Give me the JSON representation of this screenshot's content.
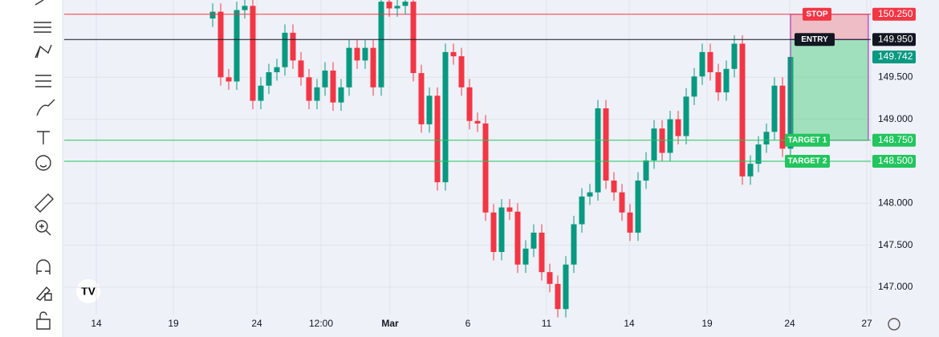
{
  "chart_data": {
    "type": "candlestick",
    "x": [
      0,
      1,
      2,
      3,
      4,
      5,
      6,
      7,
      8,
      9,
      10,
      11,
      12,
      13,
      14,
      15,
      16,
      17,
      18,
      19,
      20,
      21,
      22,
      23,
      24,
      25,
      26,
      27,
      28,
      29,
      30,
      31,
      32,
      33,
      34,
      35,
      36,
      37,
      38,
      39,
      40,
      41,
      42,
      43,
      44,
      45,
      46,
      47,
      48,
      49,
      50,
      51,
      52,
      53,
      54,
      55,
      56,
      57,
      58,
      59,
      60,
      61,
      62,
      63,
      64,
      65,
      66,
      67,
      68,
      69,
      70,
      71,
      72
    ],
    "series": [
      {
        "open": [
          150.2,
          150.28,
          149.5,
          149.45,
          150.3,
          150.35,
          149.22,
          149.4,
          149.56,
          149.62,
          150.03,
          149.7,
          149.5,
          149.22,
          149.38,
          149.58,
          149.2,
          149.38,
          149.85,
          149.7,
          149.85,
          149.38,
          150.4,
          150.32,
          150.35,
          150.4,
          149.55,
          148.94,
          149.28,
          148.25,
          149.8,
          149.75,
          149.38,
          148.98,
          148.95,
          147.89,
          147.42,
          147.95,
          147.9,
          147.27,
          147.46,
          147.65,
          147.18,
          147.04,
          146.74,
          147.27,
          147.75,
          148.08,
          148.13,
          149.13,
          148.27,
          148.13,
          147.89,
          147.65,
          148.27,
          148.51,
          148.89,
          148.6,
          149.0,
          148.8,
          149.27,
          149.51,
          149.8,
          149.56,
          149.32,
          149.6,
          149.9,
          148.32,
          148.47,
          148.7,
          148.85,
          149.4,
          148.65
        ],
        "high": [
          150.38,
          150.38,
          149.6,
          150.4,
          150.45,
          150.45,
          149.5,
          149.66,
          149.72,
          150.13,
          150.13,
          149.8,
          149.6,
          149.48,
          149.68,
          149.68,
          149.48,
          149.95,
          149.95,
          149.95,
          149.95,
          150.5,
          150.5,
          150.45,
          150.5,
          150.5,
          149.65,
          149.38,
          149.38,
          149.9,
          149.9,
          149.85,
          149.48,
          149.08,
          149.05,
          147.99,
          148.05,
          148.05,
          148.0,
          147.56,
          147.75,
          147.75,
          147.28,
          147.14,
          147.37,
          147.85,
          148.18,
          148.23,
          149.23,
          149.23,
          148.37,
          148.23,
          147.99,
          148.37,
          148.61,
          148.99,
          148.99,
          149.1,
          149.1,
          149.37,
          149.61,
          149.9,
          149.9,
          149.66,
          149.7,
          150.0,
          150.0,
          148.57,
          148.8,
          148.95,
          149.5,
          149.5,
          149.84
        ],
        "low": [
          150.1,
          149.4,
          149.35,
          149.35,
          150.2,
          149.12,
          149.12,
          149.3,
          149.46,
          149.52,
          149.6,
          149.4,
          149.12,
          149.12,
          149.28,
          149.1,
          149.1,
          149.28,
          149.6,
          149.6,
          149.28,
          149.28,
          150.22,
          150.22,
          150.25,
          149.45,
          148.84,
          148.84,
          148.15,
          148.15,
          149.65,
          149.28,
          148.88,
          148.85,
          147.79,
          147.32,
          147.32,
          147.8,
          147.17,
          147.17,
          147.36,
          147.08,
          146.94,
          146.64,
          146.64,
          147.17,
          147.65,
          147.98,
          148.03,
          148.17,
          148.03,
          147.79,
          147.55,
          147.55,
          148.17,
          148.41,
          148.5,
          148.5,
          148.7,
          148.7,
          149.17,
          149.41,
          149.46,
          149.22,
          149.22,
          149.5,
          148.22,
          148.22,
          148.37,
          148.6,
          148.75,
          148.55,
          148.55
        ],
        "close": [
          150.28,
          149.5,
          149.45,
          150.3,
          150.35,
          149.22,
          149.4,
          149.56,
          149.62,
          150.03,
          149.7,
          149.5,
          149.22,
          149.38,
          149.58,
          149.2,
          149.38,
          149.85,
          149.7,
          149.85,
          149.38,
          150.4,
          150.32,
          150.35,
          150.4,
          149.55,
          148.94,
          149.28,
          148.25,
          149.8,
          149.75,
          149.38,
          148.98,
          148.95,
          147.89,
          147.42,
          147.95,
          147.9,
          147.27,
          147.46,
          147.65,
          147.18,
          147.04,
          146.74,
          147.27,
          147.75,
          148.08,
          148.13,
          149.13,
          148.27,
          148.13,
          147.89,
          147.65,
          148.27,
          148.51,
          148.89,
          148.6,
          149.0,
          148.8,
          149.27,
          149.51,
          149.8,
          149.56,
          149.32,
          149.6,
          149.9,
          148.32,
          148.47,
          148.7,
          148.85,
          149.4,
          148.65,
          149.742
        ]
      }
    ],
    "up_color": "#089981",
    "down_color": "#f23645",
    "xlim": [
      -18.5,
      82
    ],
    "xticks": [
      {
        "value": -14.5,
        "label": "14"
      },
      {
        "value": -4.9,
        "label": "19"
      },
      {
        "value": 5.5,
        "label": "24"
      },
      {
        "value": 13.5,
        "label": "12:00"
      },
      {
        "value": 22.1,
        "label": "Mar"
      },
      {
        "value": 31.8,
        "label": "6"
      },
      {
        "value": 41.6,
        "label": "11"
      },
      {
        "value": 51.9,
        "label": "14"
      },
      {
        "value": 61.6,
        "label": "19"
      },
      {
        "value": 71.9,
        "label": "24"
      },
      {
        "value": 81.5,
        "label": "27"
      }
    ],
    "ylim": [
      146.675,
      150.42
    ],
    "yticks": [
      {
        "value": 147,
        "label": "147.000"
      },
      {
        "value": 147.5,
        "label": "147.500"
      },
      {
        "value": 148,
        "label": "148.000"
      },
      {
        "value": 149,
        "label": "149.000"
      },
      {
        "value": 149.5,
        "label": "149.500"
      }
    ],
    "grid": true,
    "price_lines": [
      {
        "label": "STOP",
        "value": 150.25,
        "value_label": "150.250",
        "color": "#f23645"
      },
      {
        "label": "ENTRY",
        "value": 149.95,
        "value_label": "149.950",
        "color": "#131722"
      },
      {
        "label": "TARGET 1",
        "value": 148.75,
        "value_label": "148.750",
        "color": "#22c55e"
      },
      {
        "label": "TARGET 2",
        "value": 148.5,
        "value_label": "148.500",
        "color": "#22c55e"
      }
    ],
    "current_price": {
      "value": 149.742,
      "value_label": "149.742",
      "color": "#089981"
    }
  }
}
